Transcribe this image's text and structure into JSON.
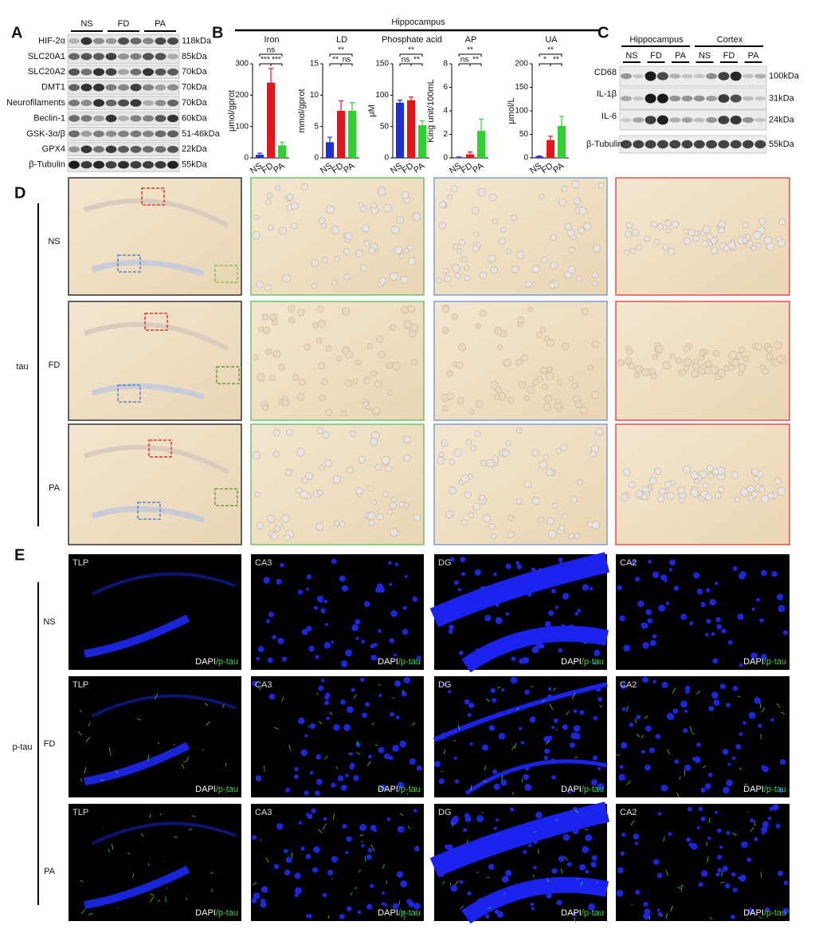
{
  "panel_a": {
    "label": "A",
    "groups": [
      "NS",
      "FD",
      "PA"
    ],
    "rows": [
      {
        "name": "HIF-2α",
        "size": "118kDa"
      },
      {
        "name": "SLC20A1",
        "size": "85kDa"
      },
      {
        "name": "SLC20A2",
        "size": "70kDa"
      },
      {
        "name": "DMT1",
        "size": "70kDa"
      },
      {
        "name": "Neurofilaments",
        "size": "70kDa"
      },
      {
        "name": "Beclin-1",
        "size": "60kDa"
      },
      {
        "name": "GSK-3α/β",
        "size": "51-46kDa"
      },
      {
        "name": "GPX4",
        "size": "22kDa"
      },
      {
        "name": "β-Tubulin",
        "size": "55kDa"
      }
    ]
  },
  "panel_b": {
    "label": "B",
    "title": "Hippocampus"
  },
  "chart_data": [
    {
      "type": "bar",
      "title": "Iron",
      "y_label": "μmol/gprot",
      "categories": [
        "NS",
        "FD",
        "PA"
      ],
      "values": [
        10,
        240,
        40
      ],
      "errors": [
        5,
        45,
        10
      ],
      "colors": [
        "#1f2fd6",
        "#e8141c",
        "#2ed12e"
      ],
      "ylim": [
        0,
        300
      ],
      "yticks": [
        0,
        100,
        200,
        300
      ],
      "significance": [
        "ns",
        "***",
        "***"
      ]
    },
    {
      "type": "bar",
      "title": "LD",
      "y_label": "mmol/gprot",
      "categories": [
        "NS",
        "FD",
        "PA"
      ],
      "values": [
        2.5,
        7.5,
        7.5
      ],
      "errors": [
        0.8,
        1.6,
        1.3
      ],
      "colors": [
        "#1f2fd6",
        "#e8141c",
        "#2ed12e"
      ],
      "ylim": [
        0,
        15
      ],
      "yticks": [
        0,
        5,
        10,
        15
      ],
      "significance": [
        "**",
        "**",
        "ns"
      ]
    },
    {
      "type": "bar",
      "title": "Phosphate acid",
      "y_label": "μM",
      "categories": [
        "NS",
        "FD",
        "PA"
      ],
      "values": [
        88,
        92,
        52
      ],
      "errors": [
        4,
        5,
        7
      ],
      "colors": [
        "#1f2fd6",
        "#e8141c",
        "#2ed12e"
      ],
      "ylim": [
        0,
        150
      ],
      "yticks": [
        0,
        50,
        100,
        150
      ],
      "significance": [
        "**",
        "ns",
        "**"
      ]
    },
    {
      "type": "bar",
      "title": "AP",
      "y_label": "King unit/100mL",
      "categories": [
        "NS",
        "FD",
        "PA"
      ],
      "values": [
        0.05,
        0.3,
        2.3
      ],
      "errors": [
        0.03,
        0.2,
        1.0
      ],
      "colors": [
        "#1f2fd6",
        "#e8141c",
        "#2ed12e"
      ],
      "ylim": [
        0,
        8
      ],
      "yticks": [
        0,
        2,
        4,
        6,
        8
      ],
      "significance": [
        "**",
        "ns",
        "**"
      ]
    },
    {
      "type": "bar",
      "title": "UA",
      "y_label": "μmol/L",
      "categories": [
        "NS",
        "FD",
        "PA"
      ],
      "values": [
        3,
        38,
        68
      ],
      "errors": [
        1,
        8,
        20
      ],
      "colors": [
        "#1f2fd6",
        "#e8141c",
        "#2ed12e"
      ],
      "ylim": [
        0,
        200
      ],
      "yticks": [
        0,
        50,
        100,
        150,
        200
      ],
      "significance": [
        "**",
        "*",
        "**"
      ]
    }
  ],
  "panel_c": {
    "label": "C",
    "regions": [
      "Hippocampus",
      "Cortex"
    ],
    "lanes": [
      "NS",
      "FD",
      "PA",
      "NS",
      "FD",
      "PA"
    ],
    "rows": [
      {
        "name": "CD68",
        "size": "100kDa"
      },
      {
        "name": "IL-1β",
        "size": "31kDa"
      },
      {
        "name": "IL-6",
        "size": "24kDa"
      },
      {
        "name": "β-Tubulin",
        "size": "55kDa"
      }
    ]
  },
  "panel_d": {
    "label": "D",
    "stain": "tau",
    "rows": [
      "NS",
      "FD",
      "PA"
    ]
  },
  "panel_e": {
    "label": "E",
    "stain": "p-tau",
    "rows": [
      "NS",
      "FD",
      "PA"
    ],
    "regions": [
      "TLP",
      "CA3",
      "DG",
      "CA2"
    ],
    "channels": [
      "DAPI",
      "/p-tau"
    ]
  }
}
